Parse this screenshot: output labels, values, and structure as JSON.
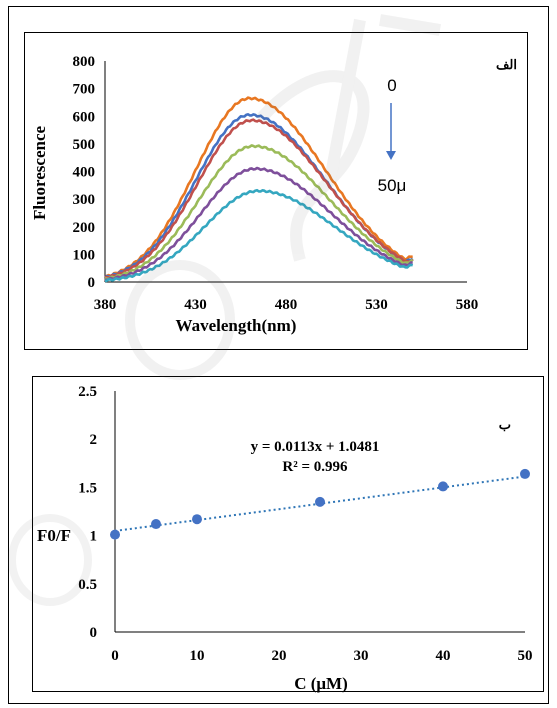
{
  "chart_data": [
    {
      "type": "line",
      "panel_label": "الف",
      "xlabel": "Wavelength(nm)",
      "ylabel": "Fluorescence",
      "xlim": [
        380,
        580
      ],
      "ylim": [
        0,
        800
      ],
      "xticks": [
        "380",
        "430",
        "480",
        "530",
        "580"
      ],
      "yticks": [
        "0",
        "100",
        "200",
        "300",
        "400",
        "500",
        "600",
        "700",
        "800"
      ],
      "grid": false,
      "annotation_top": "0",
      "annotation_bottom": "50μ",
      "series": [
        {
          "color": "#E87722",
          "peak_x": 460,
          "peak_y": 665,
          "start_y": 12,
          "end_y": 95
        },
        {
          "color": "#4472C4",
          "peak_x": 460,
          "peak_y": 605,
          "start_y": 10,
          "end_y": 85
        },
        {
          "color": "#C0504D",
          "peak_x": 461,
          "peak_y": 585,
          "start_y": 9,
          "end_y": 80
        },
        {
          "color": "#9BBB59",
          "peak_x": 462,
          "peak_y": 492,
          "start_y": 8,
          "end_y": 78
        },
        {
          "color": "#7E4F9B",
          "peak_x": 463,
          "peak_y": 410,
          "start_y": 7,
          "end_y": 70
        },
        {
          "color": "#35A7C0",
          "peak_x": 465,
          "peak_y": 330,
          "start_y": 5,
          "end_y": 62
        }
      ],
      "x_start": 380,
      "x_end": 550
    },
    {
      "type": "scatter",
      "panel_label": "ب",
      "xlabel": "C (μM)",
      "ylabel": "F0/F",
      "xlim": [
        0,
        50
      ],
      "ylim": [
        0,
        2.5
      ],
      "xticks": [
        "0",
        "10",
        "20",
        "30",
        "40",
        "50"
      ],
      "yticks": [
        "0",
        "0.5",
        "1",
        "1.5",
        "2",
        "2.5"
      ],
      "grid": false,
      "points": [
        {
          "x": 0,
          "y": 1.01
        },
        {
          "x": 5,
          "y": 1.12
        },
        {
          "x": 10,
          "y": 1.17
        },
        {
          "x": 25,
          "y": 1.35
        },
        {
          "x": 40,
          "y": 1.51
        },
        {
          "x": 50,
          "y": 1.64
        }
      ],
      "trendline": {
        "slope": 0.0113,
        "intercept": 1.0481,
        "color": "#2E75B6"
      },
      "equation": "y = 0.0113x + 1.0481",
      "r_squared": "R² = 0.996",
      "marker_color": "#4472C4"
    }
  ]
}
